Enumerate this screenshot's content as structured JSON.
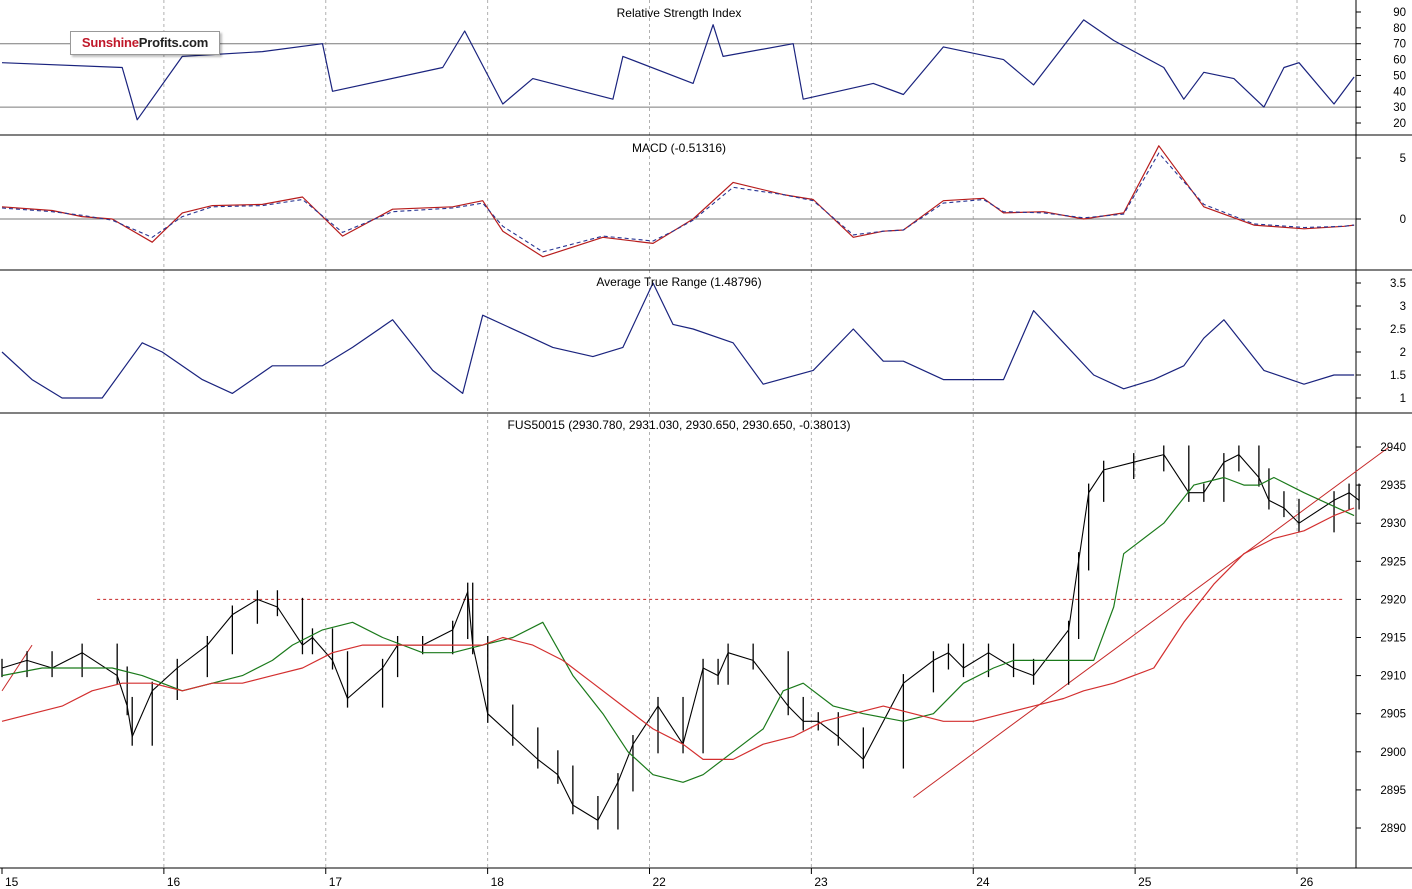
{
  "logo": {
    "part1": "Sunshine",
    "part2": "Profits.com"
  },
  "colors": {
    "rsi": "#1a237e",
    "macd": "#b71c1c",
    "signal": "#283593",
    "atr": "#1a237e",
    "price": "#000000",
    "ma_short": "#1b7a1b",
    "ma_long": "#d32f2f",
    "trend": "#c62828",
    "grid": "#b0b0b0",
    "frame": "#000000"
  },
  "chart_data": [
    {
      "id": "rsi",
      "type": "line",
      "title": "Relative Strength Index",
      "yticks": [
        20,
        30,
        40,
        50,
        60,
        70,
        80,
        90
      ],
      "ylim": [
        15,
        95
      ],
      "reference_lines": [
        30,
        70
      ],
      "x": [
        0,
        1.2,
        1.35,
        1.8,
        2.6,
        3.2,
        3.3,
        4.4,
        4.62,
        5.0,
        5.3,
        6.1,
        6.2,
        6.9,
        7.1,
        7.2,
        7.9,
        8.0,
        8.7,
        9.0,
        9.4,
        10.0,
        10.3,
        10.8,
        11.1,
        11.6,
        11.8,
        12.0,
        12.3,
        12.6,
        12.8,
        12.95,
        13.3,
        13.5
      ],
      "values": [
        58,
        55,
        22,
        62,
        65,
        70,
        40,
        55,
        78,
        32,
        48,
        35,
        62,
        45,
        82,
        62,
        70,
        35,
        45,
        38,
        68,
        60,
        44,
        85,
        72,
        55,
        35,
        52,
        48,
        30,
        55,
        58,
        32,
        49
      ],
      "grid": true
    },
    {
      "id": "macd",
      "type": "line",
      "title": "MACD (-0.51316)",
      "yticks": [
        5,
        0
      ],
      "ylim": [
        -4,
        6.5
      ],
      "reference_lines": [
        0
      ],
      "series": [
        {
          "key": "macd",
          "x": [
            0,
            0.5,
            0.8,
            1.1,
            1.5,
            1.8,
            2.1,
            2.6,
            3.0,
            3.4,
            3.9,
            4.5,
            4.8,
            5.0,
            5.4,
            6.0,
            6.5,
            6.7,
            6.9,
            7.3,
            7.8,
            8.1,
            8.5,
            8.8,
            9.0,
            9.4,
            9.8,
            10.0,
            10.4,
            10.8,
            11.2,
            11.55,
            12.0,
            12.5,
            13.0,
            13.4,
            13.5
          ],
          "values": [
            1.0,
            0.7,
            0.2,
            0.0,
            -1.9,
            0.5,
            1.1,
            1.2,
            1.8,
            -1.4,
            0.8,
            1.0,
            1.5,
            -1.0,
            -3.1,
            -1.5,
            -2.0,
            -1.0,
            0.0,
            3.0,
            2.0,
            1.6,
            -1.5,
            -1.0,
            -0.9,
            1.5,
            1.7,
            0.5,
            0.6,
            0.0,
            0.5,
            6.0,
            1.0,
            -0.5,
            -0.8,
            -0.6,
            -0.5
          ],
          "name": ""
        },
        {
          "key": "signal",
          "x": [
            0,
            0.5,
            0.8,
            1.1,
            1.5,
            1.8,
            2.1,
            2.6,
            3.0,
            3.4,
            3.9,
            4.5,
            4.8,
            5.0,
            5.4,
            6.0,
            6.5,
            6.7,
            6.9,
            7.3,
            7.8,
            8.1,
            8.5,
            8.8,
            9.0,
            9.4,
            9.8,
            10.0,
            10.4,
            10.8,
            11.2,
            11.55,
            12.0,
            12.5,
            13.0,
            13.4,
            13.5
          ],
          "values": [
            0.9,
            0.6,
            0.3,
            -0.1,
            -1.5,
            0.2,
            1.0,
            1.1,
            1.6,
            -1.1,
            0.6,
            0.9,
            1.3,
            -0.6,
            -2.7,
            -1.4,
            -1.8,
            -1.0,
            -0.1,
            2.6,
            2.0,
            1.5,
            -1.3,
            -1.0,
            -0.9,
            1.3,
            1.6,
            0.6,
            0.5,
            0.1,
            0.4,
            5.4,
            1.2,
            -0.4,
            -0.7,
            -0.6,
            -0.5
          ],
          "name": ""
        }
      ],
      "grid": true
    },
    {
      "id": "atr",
      "type": "line",
      "title": "Average True Range (1.48796)",
      "yticks": [
        1.0,
        1.5,
        2.0,
        2.5,
        3.0,
        3.5
      ],
      "ylim": [
        0.75,
        3.6
      ],
      "x": [
        0,
        0.3,
        0.6,
        1.0,
        1.4,
        1.6,
        2.0,
        2.3,
        2.7,
        3.2,
        3.5,
        3.9,
        4.3,
        4.6,
        4.8,
        5.2,
        5.5,
        5.9,
        6.2,
        6.5,
        6.7,
        6.9,
        7.3,
        7.6,
        8.1,
        8.5,
        8.8,
        9.0,
        9.4,
        9.8,
        10.0,
        10.3,
        10.6,
        10.9,
        11.2,
        11.5,
        11.8,
        12.0,
        12.2,
        12.6,
        13.0,
        13.3,
        13.5
      ],
      "values": [
        2.0,
        1.4,
        1.0,
        1.0,
        2.2,
        2.0,
        1.4,
        1.1,
        1.7,
        1.7,
        2.1,
        2.7,
        1.6,
        1.1,
        2.8,
        2.4,
        2.1,
        1.9,
        2.1,
        3.5,
        2.6,
        2.5,
        2.2,
        1.3,
        1.6,
        2.5,
        1.8,
        1.8,
        1.4,
        1.4,
        1.4,
        2.9,
        2.2,
        1.5,
        1.2,
        1.4,
        1.7,
        2.3,
        2.7,
        1.6,
        1.3,
        1.5,
        1.5
      ],
      "grid": true
    },
    {
      "id": "price",
      "type": "line",
      "title": "FUS50015 (2930.780, 2931.030, 2930.650, 2930.650, -0.38013)",
      "yticks": [
        2890,
        2895,
        2900,
        2905,
        2910,
        2915,
        2920,
        2925,
        2930,
        2935,
        2940
      ],
      "ylim": [
        2885,
        2943
      ],
      "xticks": [
        "15",
        "16",
        "17",
        "18",
        "22",
        "23",
        "24",
        "25",
        "26"
      ],
      "xlim": [
        0,
        14.05
      ],
      "horizontal_levels": [
        2920
      ],
      "trendlines": [
        {
          "from": [
            9.1,
            2894
          ],
          "to": [
            13.85,
            2940
          ]
        },
        {
          "from": [
            0.0,
            2908
          ],
          "to": [
            0.3,
            2914
          ]
        }
      ],
      "series": [
        {
          "key": "price",
          "x": [
            0,
            0.25,
            0.5,
            0.8,
            1.15,
            1.25,
            1.3,
            1.5,
            1.75,
            2.05,
            2.3,
            2.55,
            2.75,
            3.0,
            3.1,
            3.3,
            3.45,
            3.8,
            3.95,
            4.2,
            4.5,
            4.65,
            4.7,
            4.85,
            5.1,
            5.35,
            5.55,
            5.7,
            5.95,
            6.15,
            6.3,
            6.55,
            6.8,
            7.0,
            7.15,
            7.25,
            7.5,
            7.85,
            8.0,
            8.15,
            8.35,
            8.6,
            9.0,
            9.3,
            9.45,
            9.6,
            9.85,
            10.1,
            10.3,
            10.65,
            10.75,
            10.85,
            11.0,
            11.3,
            11.6,
            11.85,
            12.0,
            12.2,
            12.35,
            12.55,
            12.65,
            12.8,
            12.95,
            13.3,
            13.45,
            13.55
          ],
          "values": [
            2911,
            2912,
            2911,
            2913,
            2910,
            2906,
            2902,
            2908,
            2911,
            2914,
            2918,
            2920,
            2919,
            2914,
            2915,
            2912,
            2907,
            2911,
            2914,
            2914,
            2916,
            2921,
            2914,
            2905,
            2902,
            2899,
            2897,
            2893,
            2891,
            2896,
            2901,
            2906,
            2901,
            2911,
            2910,
            2913,
            2912,
            2906,
            2904,
            2904,
            2902,
            2899,
            2909,
            2912,
            2913,
            2911,
            2913,
            2911,
            2910,
            2916,
            2925,
            2934,
            2937,
            2938,
            2939,
            2934,
            2934,
            2938,
            2939,
            2936,
            2933,
            2932,
            2930,
            2933,
            2934,
            2933
          ],
          "name": ""
        },
        {
          "key": "ma_short",
          "x": [
            0,
            0.4,
            0.8,
            1.1,
            1.4,
            1.8,
            2.1,
            2.4,
            2.7,
            2.9,
            3.2,
            3.5,
            3.8,
            4.2,
            4.5,
            4.8,
            5.1,
            5.4,
            5.7,
            6.0,
            6.25,
            6.5,
            6.8,
            7.0,
            7.3,
            7.6,
            7.8,
            8.0,
            8.3,
            8.6,
            9.0,
            9.3,
            9.6,
            9.9,
            10.1,
            10.3,
            10.5,
            10.7,
            10.9,
            11.1,
            11.2,
            11.6,
            11.9,
            12.2,
            12.4,
            12.55,
            12.7,
            13.0,
            13.5
          ],
          "values": [
            2910,
            2911,
            2911,
            2911,
            2910,
            2908,
            2909,
            2910,
            2912,
            2914,
            2916,
            2917,
            2915,
            2913,
            2913,
            2914,
            2915,
            2917,
            2910,
            2905,
            2900,
            2897,
            2896,
            2897,
            2900,
            2903,
            2908,
            2909,
            2906,
            2905,
            2904,
            2905,
            2909,
            2911,
            2912,
            2912,
            2912,
            2912,
            2912,
            2919,
            2926,
            2930,
            2935,
            2936,
            2935,
            2935,
            2936,
            2934,
            2931
          ],
          "name": ""
        },
        {
          "key": "ma_long",
          "x": [
            0,
            0.3,
            0.6,
            0.9,
            1.2,
            1.5,
            1.8,
            2.1,
            2.4,
            2.7,
            3.0,
            3.3,
            3.6,
            3.9,
            4.2,
            4.5,
            4.8,
            5.0,
            5.3,
            5.6,
            5.9,
            6.2,
            6.5,
            6.8,
            7.0,
            7.3,
            7.6,
            7.9,
            8.2,
            8.5,
            8.8,
            9.1,
            9.4,
            9.7,
            10.0,
            10.3,
            10.6,
            10.8,
            11.1,
            11.3,
            11.5,
            11.8,
            12.1,
            12.4,
            12.7,
            13.0,
            13.3,
            13.5
          ],
          "values": [
            2904,
            2905,
            2906,
            2908,
            2909,
            2909,
            2908,
            2909,
            2909,
            2910,
            2911,
            2913,
            2914,
            2914,
            2914,
            2914,
            2914,
            2915,
            2914,
            2912,
            2909,
            2906,
            2903,
            2901,
            2899,
            2899,
            2901,
            2902,
            2904,
            2905,
            2906,
            2905,
            2904,
            2904,
            2905,
            2906,
            2907,
            2908,
            2909,
            2910,
            2911,
            2917,
            2922,
            2926,
            2928,
            2929,
            2931,
            2932
          ],
          "name": ""
        }
      ],
      "grid": true
    }
  ]
}
